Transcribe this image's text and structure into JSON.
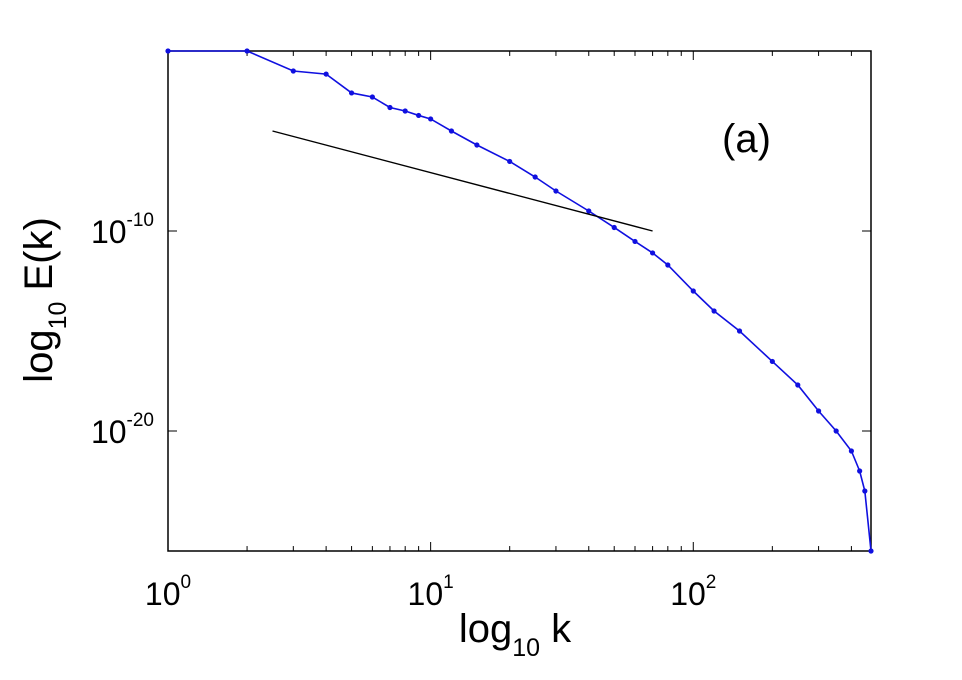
{
  "chart_data": {
    "type": "line",
    "xscale": "log",
    "yscale": "log",
    "xlim": [
      1,
      475
    ],
    "ylim": [
      1e-26,
      0.1
    ],
    "grid": false,
    "xlabel": {
      "base": "log",
      "sub": "10",
      "tail": " k"
    },
    "ylabel": {
      "base": "log",
      "sub": "10",
      "tail": " E(k)"
    },
    "xticks": [
      {
        "value": 1,
        "base": "10",
        "exp": "0"
      },
      {
        "value": 10,
        "base": "10",
        "exp": "1"
      },
      {
        "value": 100,
        "base": "10",
        "exp": "2"
      }
    ],
    "yticks": [
      {
        "value": 1e-10,
        "base": "10",
        "exp": "-10"
      },
      {
        "value": 1e-20,
        "base": "10",
        "exp": "-20"
      }
    ],
    "annotation": "(a)",
    "series": [
      {
        "color": "#1010e0",
        "marker": "dot",
        "points": [
          [
            1,
            0.1
          ],
          [
            2,
            0.1
          ],
          [
            3,
            0.01
          ],
          [
            4,
            0.007
          ],
          [
            5,
            0.0008
          ],
          [
            6,
            0.0005
          ],
          [
            7,
            0.00015
          ],
          [
            8,
            0.0001
          ],
          [
            9,
            6e-05
          ],
          [
            10,
            4e-05
          ],
          [
            12,
            1e-05
          ],
          [
            15,
            2e-06
          ],
          [
            20,
            3e-07
          ],
          [
            25,
            5e-08
          ],
          [
            30,
            1e-08
          ],
          [
            40,
            1e-09
          ],
          [
            50,
            1.5e-10
          ],
          [
            60,
            3e-11
          ],
          [
            70,
            8e-12
          ],
          [
            80,
            2e-12
          ],
          [
            100,
            1e-13
          ],
          [
            120,
            1e-14
          ],
          [
            150,
            1e-15
          ],
          [
            200,
            3e-17
          ],
          [
            250,
            2e-18
          ],
          [
            300,
            1e-19
          ],
          [
            350,
            1e-20
          ],
          [
            400,
            1e-21
          ],
          [
            430,
            1e-22
          ],
          [
            450,
            1e-23
          ],
          [
            475,
            1e-26
          ]
        ]
      },
      {
        "color": "#000000",
        "marker": "none",
        "points": [
          [
            2.5,
            1e-05
          ],
          [
            70,
            1e-10
          ]
        ]
      }
    ]
  }
}
